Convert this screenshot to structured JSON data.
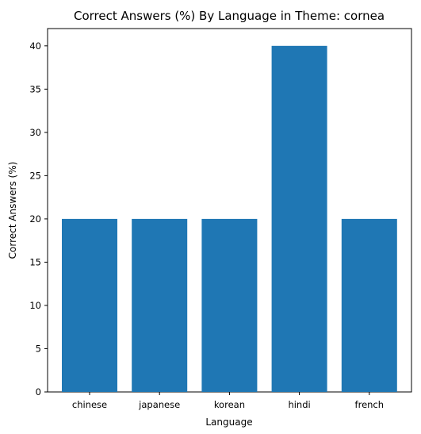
{
  "chart_data": {
    "type": "bar",
    "title": "Correct Answers (%) By Language in Theme: cornea",
    "xlabel": "Language",
    "ylabel": "Correct Answers (%)",
    "categories": [
      "chinese",
      "japanese",
      "korean",
      "hindi",
      "french"
    ],
    "values": [
      20,
      20,
      20,
      40,
      20
    ],
    "ylim": [
      0,
      42
    ],
    "yticks": [
      0,
      5,
      10,
      15,
      20,
      25,
      30,
      35,
      40
    ],
    "bar_color": "#1f77b4",
    "grid": false,
    "legend": "none"
  }
}
